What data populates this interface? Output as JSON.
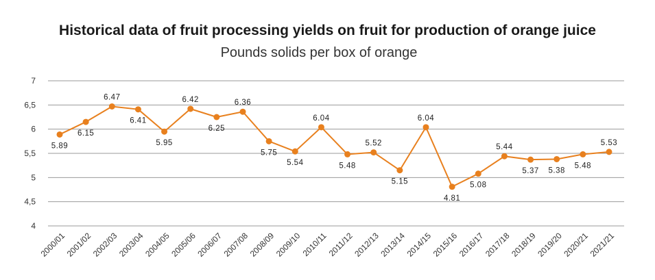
{
  "chart_data": {
    "type": "line",
    "title": "Historical data of fruit processing yields on fruit for production of orange juice",
    "subtitle": "Pounds solids per box of orange",
    "xlabel": "",
    "ylabel": "",
    "ylim": [
      4,
      7
    ],
    "yticks": [
      "4",
      "4,5",
      "5",
      "5,5",
      "6",
      "6,5",
      "7"
    ],
    "ytick_values": [
      4,
      4.5,
      5,
      5.5,
      6,
      6.5,
      7
    ],
    "grid": true,
    "legend": "none",
    "color": "#E8801E",
    "categories": [
      "2000/01",
      "2001/02",
      "2002/03",
      "2003/04",
      "2004/05",
      "2005/06",
      "2006/07",
      "2007/08",
      "2008/09",
      "2009/10",
      "2010/11",
      "2011/12",
      "2012/13",
      "2013/14",
      "2014/15",
      "2015/16",
      "2016/17",
      "2017/18",
      "2018/19",
      "2019/20",
      "2020/21",
      "2021/21"
    ],
    "values": [
      5.89,
      6.15,
      6.47,
      6.41,
      5.95,
      6.42,
      6.25,
      6.36,
      5.75,
      5.54,
      6.04,
      5.48,
      5.52,
      5.15,
      6.04,
      4.81,
      5.08,
      5.44,
      5.37,
      5.38,
      5.48,
      5.53
    ],
    "data_labels": [
      "5.89",
      "6.15",
      "6.47",
      "6.41",
      "5.95",
      "6.42",
      "6.25",
      "6.36",
      "5.75",
      "5.54",
      "6.04",
      "5.48",
      "5.52",
      "5.15",
      "6.04",
      "4.81",
      "5.08",
      "5.44",
      "5.37",
      "5.38",
      "5.48",
      "5.53"
    ]
  }
}
